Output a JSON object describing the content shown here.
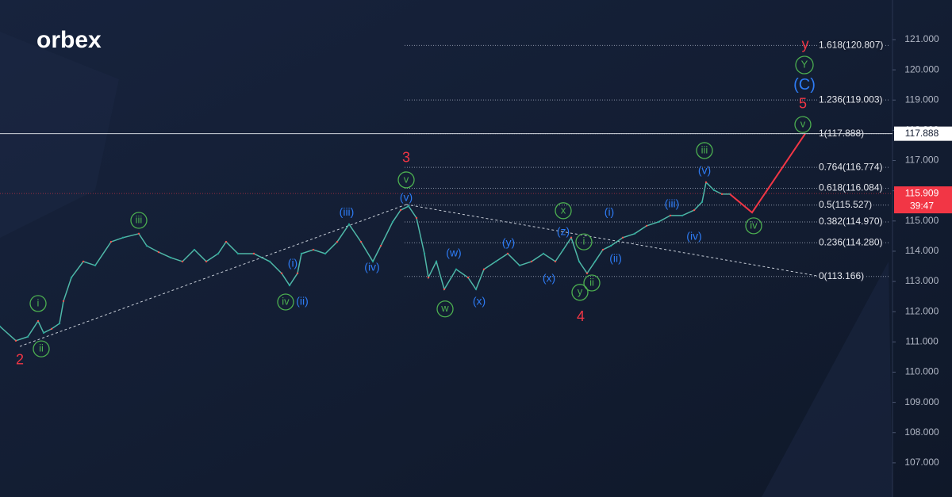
{
  "chart_data": {
    "type": "line",
    "logo": "orbex",
    "xlim": [
      0,
      112.5
    ],
    "ylim": [
      105.87,
      122.31
    ],
    "yticks": [
      {
        "value": 107,
        "label": "107.000"
      },
      {
        "value": 108,
        "label": "108.000"
      },
      {
        "value": 109,
        "label": "109.000"
      },
      {
        "value": 110,
        "label": "110.000"
      },
      {
        "value": 111,
        "label": "111.000"
      },
      {
        "value": 112,
        "label": "112.000"
      },
      {
        "value": 113,
        "label": "113.000"
      },
      {
        "value": 114,
        "label": "114.000"
      },
      {
        "value": 115,
        "label": "115.000"
      },
      {
        "value": 116,
        "label": "116.000"
      },
      {
        "value": 117,
        "label": "117.000"
      },
      {
        "value": 118,
        "label": "118.000"
      },
      {
        "value": 119,
        "label": "119.000"
      },
      {
        "value": 120,
        "label": "120.000"
      },
      {
        "value": 121,
        "label": "121.000"
      }
    ],
    "x": [
      0,
      2,
      3.5,
      4.8,
      5.5,
      6.5,
      7.5,
      8,
      9,
      10.5,
      12,
      14,
      15.5,
      17.5,
      18.5,
      20,
      21.5,
      23,
      24.5,
      26,
      27.5,
      28.5,
      30,
      32,
      34,
      35.5,
      36.5,
      37.5,
      38,
      39.5,
      41,
      42.5,
      44,
      45.5,
      47,
      48,
      49.5,
      50.5,
      51.5,
      52.5,
      53.5,
      54,
      55,
      56,
      57.5,
      59,
      60,
      61,
      62.5,
      64,
      65.5,
      67,
      68.5,
      70,
      71,
      72,
      73,
      74,
      75,
      76,
      77,
      78.5,
      80,
      81.5,
      83,
      84.5,
      86,
      87.5,
      88.5,
      89,
      90,
      91,
      92
    ],
    "values": [
      111.51,
      111.04,
      111.17,
      111.69,
      111.3,
      111.43,
      111.61,
      112.35,
      113.13,
      113.66,
      113.53,
      114.31,
      114.45,
      114.58,
      114.18,
      113.97,
      113.79,
      113.66,
      114.05,
      113.66,
      113.92,
      114.31,
      113.92,
      113.92,
      113.66,
      113.27,
      112.87,
      113.27,
      113.92,
      114.05,
      113.92,
      114.31,
      114.89,
      114.31,
      113.66,
      114.18,
      114.97,
      115.36,
      115.49,
      115.1,
      113.92,
      113.13,
      113.66,
      112.74,
      113.4,
      113.13,
      112.74,
      113.4,
      113.66,
      113.92,
      113.53,
      113.66,
      113.92,
      113.66,
      114.05,
      114.45,
      113.66,
      113.27,
      113.66,
      114.05,
      114.18,
      114.45,
      114.58,
      114.84,
      114.97,
      115.18,
      115.18,
      115.36,
      115.63,
      116.28,
      116.02,
      115.89,
      115.89
    ],
    "color": "#4fb8a8",
    "projection": {
      "x": [
        92,
        94.8,
        101.5
      ],
      "values": [
        115.89,
        115.28,
        117.888
      ],
      "color": "#f23645"
    },
    "fib_levels": [
      {
        "value": 120.807,
        "label": "1.618(120.807)"
      },
      {
        "value": 119.003,
        "label": "1.236(119.003)"
      },
      {
        "value": 117.888,
        "label": "1(117.888)"
      },
      {
        "value": 116.774,
        "label": "0.764(116.774)"
      },
      {
        "value": 116.084,
        "label": "0.618(116.084)"
      },
      {
        "value": 115.527,
        "label": "0.5(115.527)"
      },
      {
        "value": 114.97,
        "label": "0.382(114.970)"
      },
      {
        "value": 114.28,
        "label": "0.236(114.280)"
      },
      {
        "value": 113.166,
        "label": "0(113.166)"
      }
    ],
    "price_tags": [
      {
        "value": 117.888,
        "label": "117.888"
      },
      {
        "value": 115.909,
        "label": "115.909",
        "timer": "39:47"
      }
    ],
    "annotations": [
      {
        "text": "2",
        "x": 2.5,
        "y": 110.38,
        "style": "red"
      },
      {
        "text": "3",
        "x": 51.2,
        "y": 117.07,
        "style": "red"
      },
      {
        "text": "4",
        "x": 73.2,
        "y": 111.82,
        "style": "red"
      },
      {
        "text": "5",
        "x": 101.2,
        "y": 118.85,
        "style": "red"
      },
      {
        "text": "y",
        "x": 101.5,
        "y": 120.82,
        "style": "red"
      },
      {
        "text": "i",
        "x": 4.8,
        "y": 112.27,
        "style": "green"
      },
      {
        "text": "ii",
        "x": 5.2,
        "y": 110.77,
        "style": "green"
      },
      {
        "text": "iii",
        "x": 17.5,
        "y": 115.02,
        "style": "green"
      },
      {
        "text": "iv",
        "x": 36,
        "y": 112.32,
        "style": "green"
      },
      {
        "text": "v",
        "x": 51.2,
        "y": 116.36,
        "style": "green"
      },
      {
        "text": "w",
        "x": 56.1,
        "y": 112.09,
        "style": "green"
      },
      {
        "text": "x",
        "x": 71,
        "y": 115.34,
        "style": "green"
      },
      {
        "text": "y",
        "x": 73.1,
        "y": 112.64,
        "style": "green"
      },
      {
        "text": "ii",
        "x": 74.6,
        "y": 112.95,
        "style": "green"
      },
      {
        "text": "i",
        "x": 73.6,
        "y": 114.31,
        "style": "green"
      },
      {
        "text": "iii",
        "x": 88.8,
        "y": 117.33,
        "style": "green"
      },
      {
        "text": "v",
        "x": 101.2,
        "y": 118.19,
        "style": "green"
      },
      {
        "text": "iv",
        "x": 95,
        "y": 114.84,
        "style": "green"
      },
      {
        "text": "Y",
        "x": 101.4,
        "y": 120.16,
        "style": "green"
      },
      {
        "text": "(ii)",
        "x": 38.1,
        "y": 112.32,
        "style": "blue"
      },
      {
        "text": "(i)",
        "x": 36.9,
        "y": 113.58,
        "style": "blue"
      },
      {
        "text": "(iv)",
        "x": 46.9,
        "y": 113.45,
        "style": "blue"
      },
      {
        "text": "(iii)",
        "x": 43.7,
        "y": 115.28,
        "style": "blue"
      },
      {
        "text": "(v)",
        "x": 51.2,
        "y": 115.76,
        "style": "blue"
      },
      {
        "text": "(w)",
        "x": 57.2,
        "y": 113.92,
        "style": "blue"
      },
      {
        "text": "(x)",
        "x": 60.4,
        "y": 112.32,
        "style": "blue"
      },
      {
        "text": "(y)",
        "x": 64.1,
        "y": 114.26,
        "style": "blue"
      },
      {
        "text": "(x)",
        "x": 69.2,
        "y": 113.08,
        "style": "blue"
      },
      {
        "text": "(z)",
        "x": 71,
        "y": 114.63,
        "style": "blue"
      },
      {
        "text": "(i)",
        "x": 76.8,
        "y": 115.28,
        "style": "blue"
      },
      {
        "text": "(ii)",
        "x": 77.6,
        "y": 113.74,
        "style": "blue"
      },
      {
        "text": "(iii)",
        "x": 84.7,
        "y": 115.55,
        "style": "blue"
      },
      {
        "text": "(iv)",
        "x": 87.5,
        "y": 114.47,
        "style": "blue"
      },
      {
        "text": "(v)",
        "x": 88.8,
        "y": 116.65,
        "style": "blue"
      },
      {
        "text": "(C)",
        "x": 101.4,
        "y": 119.48,
        "style": "bigblue"
      }
    ]
  }
}
